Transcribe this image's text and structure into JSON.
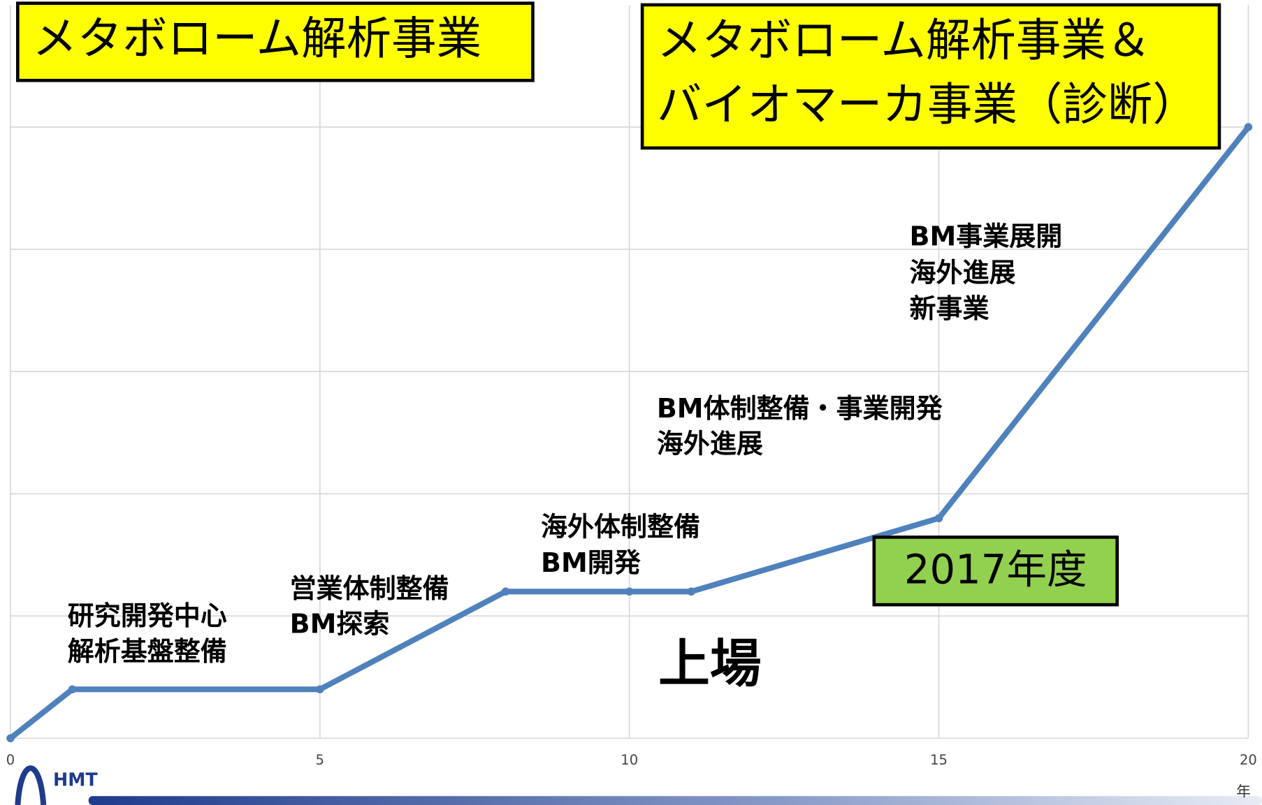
{
  "chart_data": {
    "type": "line",
    "x": [
      0,
      1,
      5,
      8,
      10,
      11,
      15,
      20
    ],
    "series": [
      {
        "color": "#4f81bd",
        "values": [
          0,
          0.4,
          0.4,
          1.2,
          1.2,
          1.2,
          1.8,
          5
        ]
      }
    ],
    "xlim": [
      0,
      20
    ],
    "xticks": [
      0,
      5,
      10,
      15,
      20
    ],
    "ylim": [
      0,
      6
    ],
    "yticks": [
      0,
      1,
      2,
      3,
      4,
      5
    ],
    "grid": true,
    "x_unit": "年",
    "boxes": [
      {
        "lines": [
          "メタボローム解析事業"
        ],
        "color": "#ffff00"
      },
      {
        "lines": [
          "メタボローム解析事業＆",
          "バイオマーカ事業（診断）"
        ],
        "color": "#ffff00"
      },
      {
        "lines": [
          "2017年度"
        ],
        "color": "#92d050"
      }
    ],
    "annotations": [
      {
        "lines": [
          "研究開発中心",
          "解析基盤整備"
        ]
      },
      {
        "lines": [
          "営業体制整備",
          "BM探索"
        ]
      },
      {
        "lines": [
          "海外体制整備",
          "BM開発"
        ]
      },
      {
        "lines": [
          "BM体制整備・事業開発",
          "海外進展"
        ]
      },
      {
        "lines": [
          "BM事業展開",
          "海外進展",
          "新事業"
        ]
      },
      {
        "lines": [
          "上場"
        ]
      }
    ],
    "logo": "HMT"
  }
}
